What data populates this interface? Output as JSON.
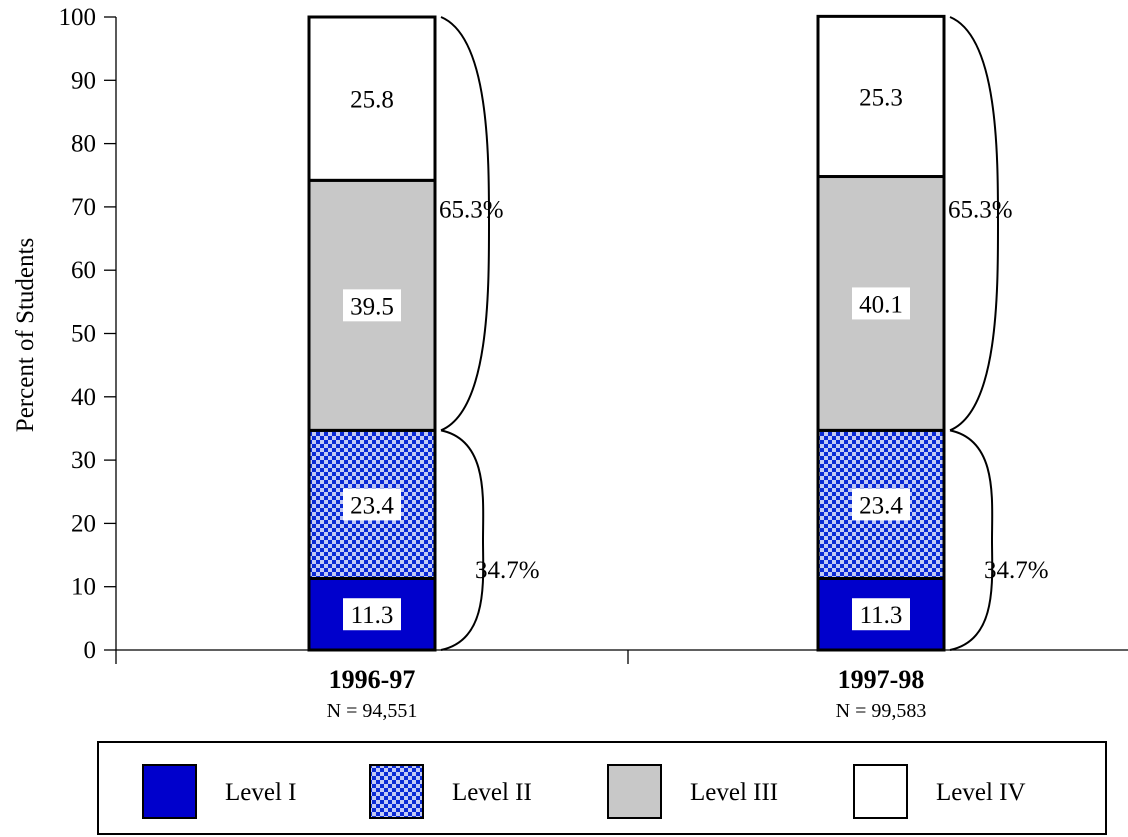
{
  "chart_data": {
    "type": "bar",
    "stacked": true,
    "categories": [
      "1996-97",
      "1997-98"
    ],
    "category_notes": [
      "N = 94,551",
      "N = 99,583"
    ],
    "series": [
      {
        "name": "Level I",
        "values": [
          11.3,
          11.3
        ],
        "fill": "blue"
      },
      {
        "name": "Level II",
        "values": [
          23.4,
          23.4
        ],
        "fill": "blue-checker"
      },
      {
        "name": "Level III",
        "values": [
          39.5,
          40.1
        ],
        "fill": "gray"
      },
      {
        "name": "Level IV",
        "values": [
          25.8,
          25.3
        ],
        "fill": "white"
      }
    ],
    "value_labels": [
      [
        "11.3",
        "23.4",
        "39.5",
        "25.8"
      ],
      [
        "11.3",
        "23.4",
        "40.1",
        "25.3"
      ]
    ],
    "bracket_annotations": [
      {
        "category": "1996-97",
        "lower_label": "34.7%",
        "upper_label": "65.3%"
      },
      {
        "category": "1997-98",
        "lower_label": "34.7%",
        "upper_label": "65.3%"
      }
    ],
    "ylabel": "Percent of Students",
    "xlabel": "",
    "ylim": [
      0,
      100
    ],
    "yticks": [
      0,
      10,
      20,
      30,
      40,
      50,
      60,
      70,
      80,
      90,
      100
    ],
    "grid": false,
    "legend_position": "bottom"
  },
  "colors": {
    "level1": "#0000cc",
    "level2_base": "#0a2ad6",
    "level2_dot": "#ffffff",
    "level3": "#c8c8c8",
    "level4": "#ffffff",
    "stroke": "#000000"
  }
}
